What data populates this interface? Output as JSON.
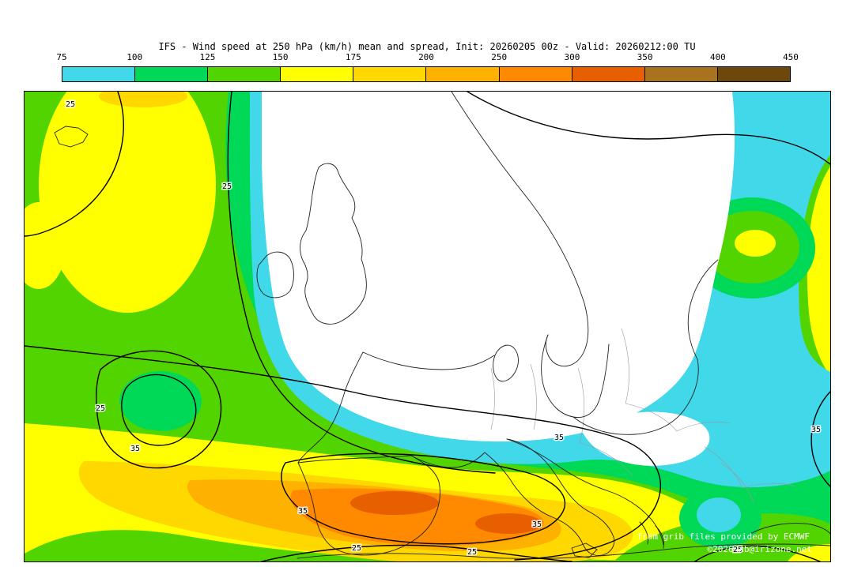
{
  "title": "IFS - Wind speed at 250 hPa (km/h) mean and spread, Init: 20260205 00z - Valid: 20260212:00 TU",
  "palette": {
    "c75": "#41D8EA",
    "c100": "#00D957",
    "c125": "#52D400",
    "c150": "#FFFF00",
    "c175": "#FFD800",
    "c200": "#FFB100",
    "c250": "#FF8A00",
    "c300": "#E85F00",
    "c350": "#A8721E",
    "c400": "#6E470D"
  },
  "colorbar": {
    "ticks": [
      "75",
      "100",
      "125",
      "150",
      "175",
      "200",
      "250",
      "300",
      "350",
      "400",
      "450"
    ],
    "segment_keys": [
      "c75",
      "c100",
      "c125",
      "c150",
      "c175",
      "c200",
      "c250",
      "c300",
      "c350",
      "c400"
    ]
  },
  "map": {
    "contour_labels": [
      {
        "text": "25"
      },
      {
        "text": "25"
      },
      {
        "text": "25"
      },
      {
        "text": "35"
      },
      {
        "text": "25"
      },
      {
        "text": "25"
      },
      {
        "text": "35"
      },
      {
        "text": "35"
      },
      {
        "text": "35"
      },
      {
        "text": "35"
      },
      {
        "text": "25"
      }
    ],
    "attribution": {
      "line1": "from grib files provided by ECMWF",
      "line2": "©2026 xb@irizone.net"
    }
  }
}
